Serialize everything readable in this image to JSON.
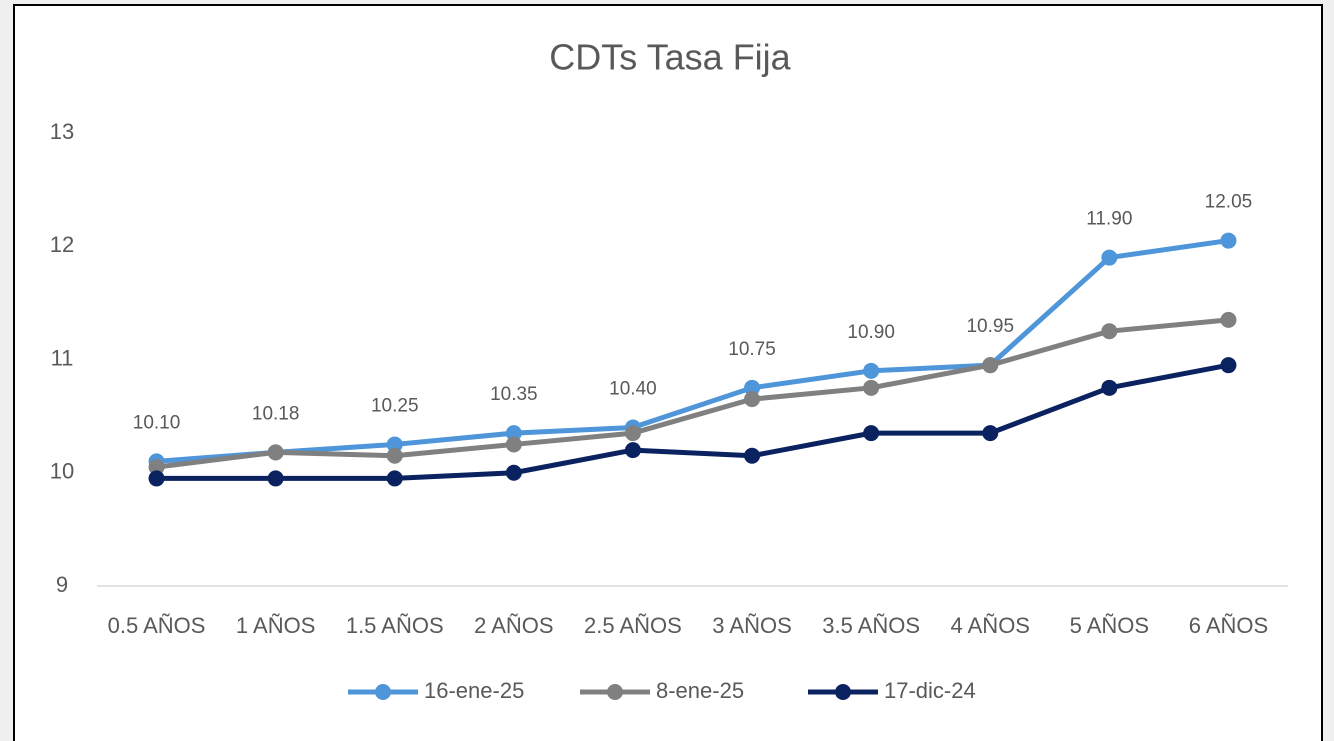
{
  "chart_data": {
    "type": "line",
    "title": "CDTs Tasa Fija",
    "categories": [
      "0.5 AÑOS",
      "1 AÑOS",
      "1.5 AÑOS",
      "2 AÑOS",
      "2.5 AÑOS",
      "3 AÑOS",
      "3.5 AÑOS",
      "4 AÑOS",
      "5 AÑOS",
      "6 AÑOS"
    ],
    "series": [
      {
        "name": "16-ene-25",
        "color": "#4e95d9",
        "values": [
          10.1,
          10.18,
          10.25,
          10.35,
          10.4,
          10.75,
          10.9,
          10.95,
          11.9,
          12.05
        ],
        "value_labels": [
          "10.10",
          "10.18",
          "10.25",
          "10.35",
          "10.40",
          "10.75",
          "10.90",
          "10.95",
          "11.90",
          "12.05"
        ]
      },
      {
        "name": "8-ene-25",
        "color": "#808080",
        "values": [
          10.05,
          10.18,
          10.15,
          10.25,
          10.35,
          10.65,
          10.75,
          10.95,
          11.25,
          11.35
        ]
      },
      {
        "name": "17-dic-24",
        "color": "#0b2260",
        "values": [
          9.95,
          9.95,
          9.95,
          10.0,
          10.2,
          10.15,
          10.35,
          10.35,
          10.75,
          10.95
        ]
      }
    ],
    "ylim": [
      9,
      13
    ],
    "yticks": [
      9,
      10,
      11,
      12,
      13
    ],
    "grid": false,
    "legend": "bottom"
  }
}
